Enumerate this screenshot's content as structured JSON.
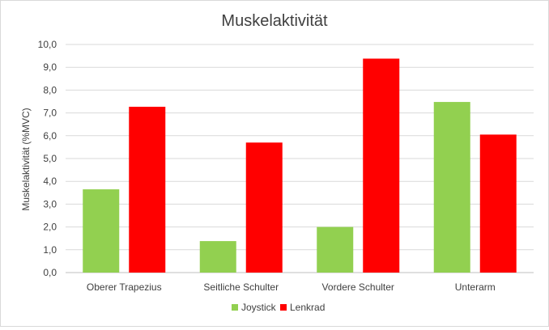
{
  "chart_data": {
    "type": "bar",
    "title": "Muskelaktivität",
    "xlabel": "",
    "ylabel": "Muskelaktivität (%MVC)",
    "ylim": [
      0,
      10
    ],
    "yticks": [
      "0,0",
      "1,0",
      "2,0",
      "3,0",
      "4,0",
      "5,0",
      "6,0",
      "7,0",
      "8,0",
      "9,0",
      "10,0"
    ],
    "categories": [
      "Oberer Trapezius",
      "Seitliche Schulter",
      "Vordere Schulter",
      "Unterarm"
    ],
    "series": [
      {
        "name": "Joystick",
        "color": "#92d050",
        "values": [
          3.65,
          1.38,
          2.0,
          7.48
        ]
      },
      {
        "name": "Lenkrad",
        "color": "#ff0000",
        "values": [
          7.27,
          5.7,
          9.38,
          6.05
        ]
      }
    ],
    "grid": true,
    "legend_position": "bottom"
  }
}
